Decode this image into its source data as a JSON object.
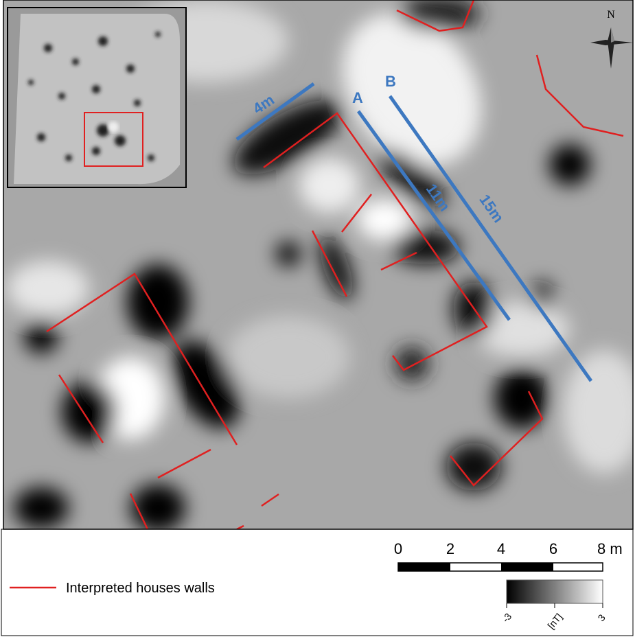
{
  "map": {
    "north": "N",
    "profiles": {
      "a": "A",
      "b": "B",
      "a_length": "11m",
      "b_length": "15m",
      "short_length": "4m"
    },
    "scale_bar": {
      "labels": [
        "0",
        "2",
        "4",
        "6",
        "8 m"
      ]
    },
    "legend": {
      "walls": "Interpreted houses walls"
    },
    "colorbar": {
      "min": "-3",
      "unit": "[nT]",
      "max": "3"
    }
  }
}
